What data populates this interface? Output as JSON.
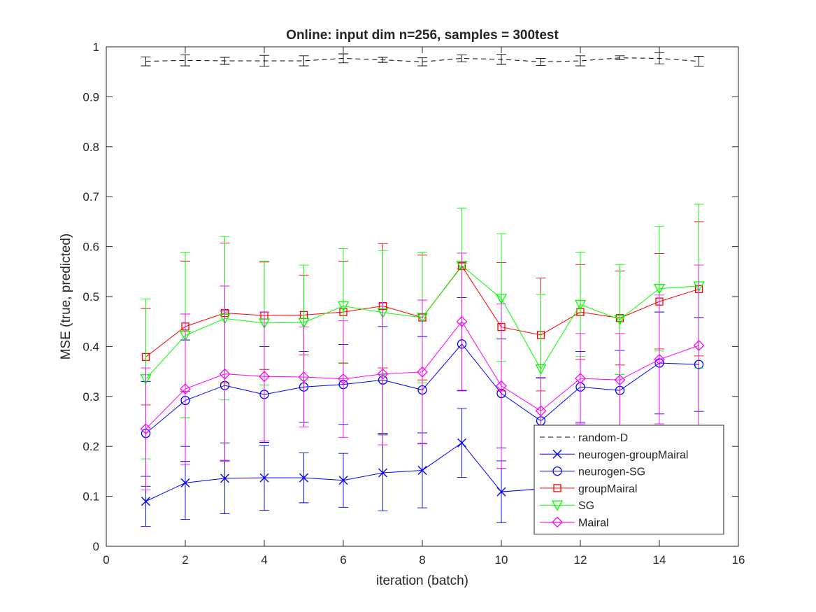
{
  "chart_data": {
    "type": "line",
    "title": "Online:  input dim n=256, samples = 300test",
    "xlabel": "iteration (batch)",
    "ylabel": "MSE (true, predicted)",
    "xlim": [
      0,
      16
    ],
    "ylim": [
      0,
      1
    ],
    "xticks": [
      "0",
      "2",
      "4",
      "6",
      "8",
      "10",
      "12",
      "14",
      "16"
    ],
    "yticks": [
      "0",
      "0.1",
      "0.2",
      "0.3",
      "0.4",
      "0.5",
      "0.6",
      "0.7",
      "0.8",
      "0.9",
      "1"
    ],
    "grid": false,
    "legend_position": "bottom-right",
    "x": [
      1,
      2,
      3,
      4,
      5,
      6,
      7,
      8,
      9,
      10,
      11,
      12,
      13,
      14,
      15
    ],
    "series": [
      {
        "name": "random-D",
        "color": "#000000",
        "dash": true,
        "marker": "none",
        "values": [
          0.971,
          0.973,
          0.972,
          0.972,
          0.972,
          0.977,
          0.974,
          0.97,
          0.977,
          0.975,
          0.97,
          0.972,
          0.978,
          0.977,
          0.971
        ],
        "lower": [
          0.962,
          0.962,
          0.965,
          0.961,
          0.962,
          0.968,
          0.969,
          0.962,
          0.97,
          0.965,
          0.963,
          0.962,
          0.974,
          0.966,
          0.961
        ],
        "upper": [
          0.98,
          0.984,
          0.979,
          0.983,
          0.982,
          0.986,
          0.979,
          0.978,
          0.984,
          0.985,
          0.977,
          0.982,
          0.982,
          0.988,
          0.981
        ]
      },
      {
        "name": "neurogen-groupMairal",
        "color": "#0000ff",
        "marker": "x",
        "values": [
          0.09,
          0.127,
          0.136,
          0.137,
          0.137,
          0.132,
          0.147,
          0.152,
          0.207,
          0.109,
          0.115,
          0.12,
          0.125,
          0.13,
          0.135
        ],
        "lower": [
          0.04,
          0.054,
          0.065,
          0.072,
          0.087,
          0.078,
          0.071,
          0.077,
          0.138,
          0.047,
          0.055,
          0.06,
          0.065,
          0.07,
          0.075
        ],
        "upper": [
          0.14,
          0.2,
          0.207,
          0.202,
          0.187,
          0.186,
          0.223,
          0.227,
          0.276,
          0.171,
          0.175,
          0.18,
          0.185,
          0.19,
          0.195
        ]
      },
      {
        "name": "neurogen-SG",
        "color": "#0000ff",
        "marker": "circle",
        "values": [
          0.226,
          0.292,
          0.322,
          0.304,
          0.319,
          0.324,
          0.333,
          0.313,
          0.405,
          0.306,
          0.251,
          0.319,
          0.312,
          0.367,
          0.364
        ],
        "lower": [
          0.12,
          0.17,
          0.172,
          0.208,
          0.248,
          0.244,
          0.226,
          0.206,
          0.312,
          0.197,
          0.165,
          0.248,
          0.232,
          0.265,
          0.27
        ],
        "upper": [
          0.33,
          0.413,
          0.471,
          0.4,
          0.39,
          0.404,
          0.44,
          0.42,
          0.498,
          0.415,
          0.337,
          0.39,
          0.392,
          0.469,
          0.458
        ]
      },
      {
        "name": "groupMairal",
        "color": "#ff0000",
        "marker": "square",
        "values": [
          0.379,
          0.44,
          0.467,
          0.462,
          0.463,
          0.469,
          0.481,
          0.458,
          0.561,
          0.439,
          0.423,
          0.469,
          0.457,
          0.49,
          0.515
        ],
        "lower": [
          0.283,
          0.31,
          0.327,
          0.354,
          0.383,
          0.367,
          0.357,
          0.333,
          0.555,
          0.311,
          0.311,
          0.374,
          0.363,
          0.395,
          0.381
        ],
        "upper": [
          0.476,
          0.571,
          0.607,
          0.569,
          0.543,
          0.571,
          0.606,
          0.583,
          0.567,
          0.568,
          0.537,
          0.564,
          0.551,
          0.586,
          0.65
        ]
      },
      {
        "name": "SG",
        "color": "#00ff00",
        "marker": "triangle-down",
        "values": [
          0.335,
          0.422,
          0.456,
          0.447,
          0.448,
          0.481,
          0.468,
          0.458,
          0.562,
          0.496,
          0.355,
          0.484,
          0.454,
          0.516,
          0.521
        ],
        "lower": [
          0.175,
          0.257,
          0.293,
          0.323,
          0.333,
          0.366,
          0.344,
          0.327,
          0.447,
          0.37,
          0.205,
          0.38,
          0.344,
          0.391,
          0.357
        ],
        "upper": [
          0.495,
          0.589,
          0.62,
          0.571,
          0.563,
          0.596,
          0.592,
          0.589,
          0.677,
          0.626,
          0.505,
          0.589,
          0.564,
          0.641,
          0.685
        ]
      },
      {
        "name": "Mairal",
        "color": "#ff00ff",
        "marker": "diamond",
        "values": [
          0.235,
          0.315,
          0.345,
          0.34,
          0.339,
          0.335,
          0.345,
          0.349,
          0.45,
          0.321,
          0.271,
          0.336,
          0.333,
          0.374,
          0.402
        ],
        "lower": [
          0.113,
          0.164,
          0.17,
          0.211,
          0.239,
          0.218,
          0.203,
          0.205,
          0.311,
          0.156,
          0.205,
          0.245,
          0.24,
          0.245,
          0.24
        ],
        "upper": [
          0.357,
          0.465,
          0.521,
          0.469,
          0.439,
          0.452,
          0.487,
          0.493,
          0.587,
          0.485,
          0.338,
          0.426,
          0.426,
          0.503,
          0.563
        ]
      }
    ]
  }
}
